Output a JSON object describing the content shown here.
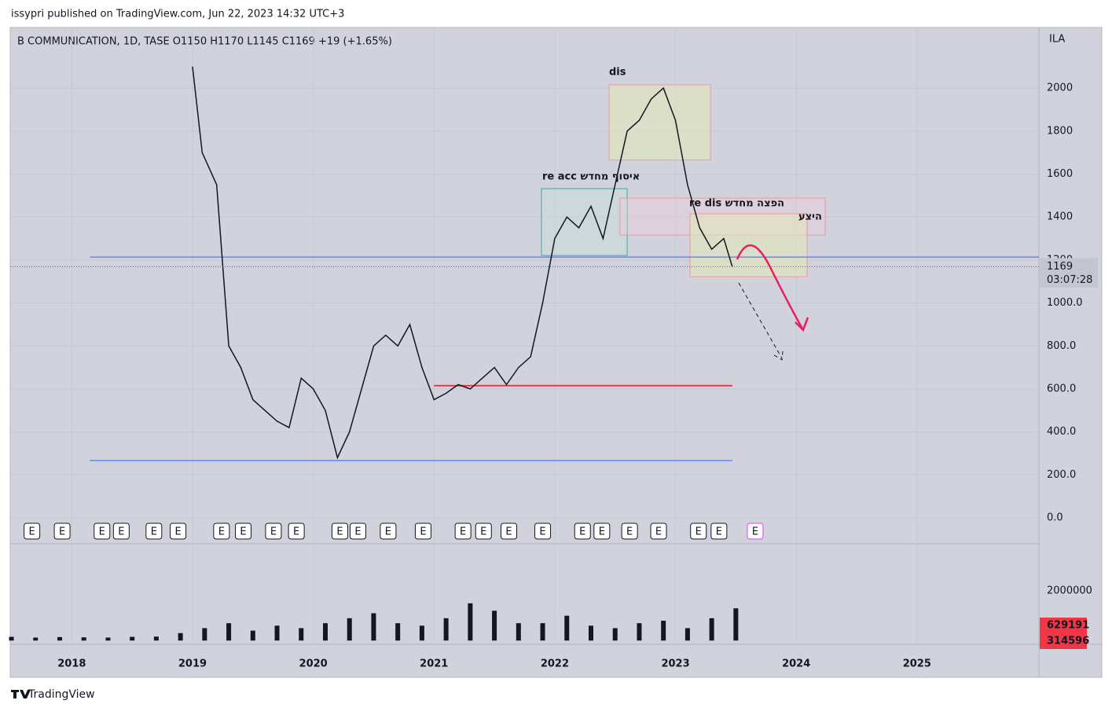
{
  "header": "issypri published on TradingView.com, Jun 22, 2023 14:32 UTC+3",
  "footer": "TradingView",
  "chart_data": [
    {
      "type": "line",
      "title": "B COMMUNICATION, 1D, TASE  O1150  H1170  L1145  C1169  +19 (+1.65%)",
      "currency": "ILA",
      "color": "#131722",
      "x": [
        2019.0,
        2019.08,
        2019.2,
        2019.3,
        2019.4,
        2019.5,
        2019.6,
        2019.7,
        2019.8,
        2019.9,
        2020.0,
        2020.1,
        2020.2,
        2020.3,
        2020.4,
        2020.5,
        2020.6,
        2020.7,
        2020.8,
        2020.9,
        2021.0,
        2021.1,
        2021.2,
        2021.3,
        2021.4,
        2021.5,
        2021.6,
        2021.7,
        2021.8,
        2021.9,
        2022.0,
        2022.1,
        2022.2,
        2022.3,
        2022.4,
        2022.5,
        2022.6,
        2022.7,
        2022.8,
        2022.9,
        2023.0,
        2023.1,
        2023.2,
        2023.3,
        2023.4,
        2023.47
      ],
      "values": [
        2100,
        1700,
        1550,
        800,
        700,
        550,
        500,
        450,
        420,
        650,
        600,
        500,
        280,
        400,
        600,
        800,
        850,
        800,
        900,
        700,
        550,
        580,
        620,
        600,
        650,
        700,
        620,
        700,
        750,
        1000,
        1300,
        1400,
        1350,
        1450,
        1300,
        1550,
        1800,
        1850,
        1950,
        2000,
        1850,
        1550,
        1350,
        1250,
        1300,
        1169
      ],
      "last_value_label": "1169",
      "countdown": "03:07:28",
      "xlim": [
        2017.49,
        2026.01
      ],
      "xticks": [
        2018,
        2019,
        2020,
        2021,
        2022,
        2023,
        2024,
        2025
      ],
      "ylim": [
        -113,
        2282
      ],
      "yticks": [
        {
          "value": 0,
          "label": "0.0"
        },
        {
          "value": 200,
          "label": "200.0"
        },
        {
          "value": 400,
          "label": "400.0"
        },
        {
          "value": 600,
          "label": "600.0"
        },
        {
          "value": 800,
          "label": "800.0"
        },
        {
          "value": 1000,
          "label": "1000.0"
        },
        1200,
        1400,
        1600,
        1800,
        2000
      ],
      "grid": true,
      "levels": [
        {
          "value": 1214,
          "color": "#2962ff",
          "x": [
            2018.15,
            2026.01
          ]
        },
        {
          "value": 267,
          "color": "#2962ff",
          "x": [
            2018.15,
            2023.47
          ]
        },
        {
          "value": 615,
          "color": "#f23645",
          "x": [
            2021.0,
            2023.47
          ]
        }
      ],
      "boxes": [
        {
          "label": "dis",
          "x": [
            2022.45,
            2023.29
          ],
          "y": [
            1665,
            2015
          ],
          "color": "#e89aa8",
          "fill": "rgba(230,235,180,0.5)"
        },
        {
          "label": "re acc איסוף מחדש",
          "x": [
            2021.89,
            2022.6
          ],
          "y": [
            1221,
            1532
          ],
          "color": "#4aa59a",
          "fill": "rgba(200,225,215,0.4)"
        },
        {
          "label": "re dis הפצה מחדש",
          "x": [
            2022.54,
            2024.24
          ],
          "y": [
            1316,
            1488
          ],
          "color": "#e89aa8",
          "fill": "rgba(240,205,220,0.35)"
        },
        {
          "label": "היצע",
          "x": [
            2023.12,
            2024.09
          ],
          "y": [
            1122,
            1415
          ],
          "color": "#e89aa8",
          "fill": "rgba(230,235,180,0.5)"
        }
      ],
      "earnings_marker": "E",
      "earnings_x": [
        2017.67,
        2017.92,
        2018.25,
        2018.41,
        2018.68,
        2018.88,
        2019.24,
        2019.42,
        2019.67,
        2019.86,
        2020.22,
        2020.37,
        2020.62,
        2020.91,
        2021.24,
        2021.41,
        2021.62,
        2021.9,
        2022.23,
        2022.39,
        2022.62,
        2022.86,
        2023.19,
        2023.36,
        2023.66
      ]
    },
    {
      "type": "bar",
      "color": "#131722",
      "x": [
        2017.5,
        2017.7,
        2017.9,
        2018.1,
        2018.3,
        2018.5,
        2018.7,
        2018.9,
        2019.1,
        2019.3,
        2019.5,
        2019.7,
        2019.9,
        2020.1,
        2020.3,
        2020.5,
        2020.7,
        2020.9,
        2021.1,
        2021.3,
        2021.5,
        2021.7,
        2021.9,
        2022.1,
        2022.3,
        2022.5,
        2022.7,
        2022.9,
        2023.1,
        2023.3,
        2023.5
      ],
      "values": [
        150000,
        120000,
        140000,
        130000,
        120000,
        150000,
        160000,
        300000,
        500000,
        700000,
        400000,
        600000,
        500000,
        700000,
        900000,
        1100000,
        700000,
        600000,
        900000,
        1500000,
        1200000,
        700000,
        700000,
        1000000,
        600000,
        500000,
        700000,
        800000,
        500000,
        900000,
        1300000
      ],
      "ylim": [
        -150000,
        3900000
      ],
      "yticks": [
        2000000
      ],
      "value_labels": [
        {
          "value": 629191,
          "label": "629191"
        },
        {
          "value": 314596,
          "label": "314596"
        }
      ]
    }
  ]
}
